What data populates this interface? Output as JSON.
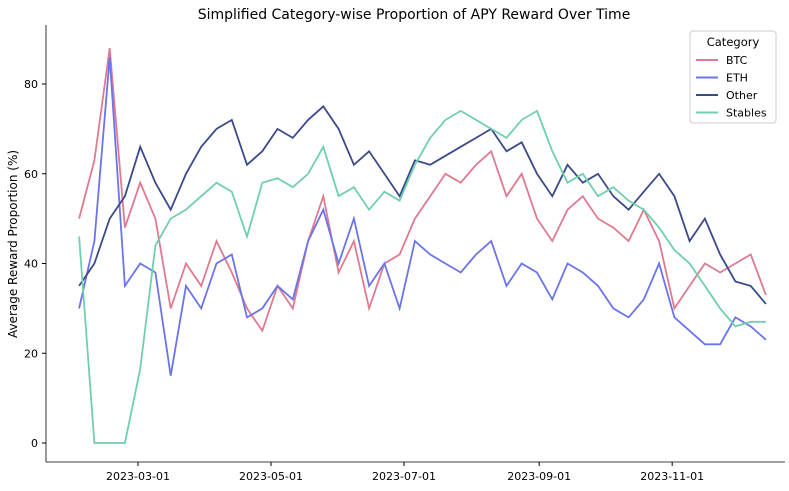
{
  "chart_data": {
    "type": "line",
    "title": "Simplified Category-wise Proportion of APY Reward Over Time",
    "xlabel": "",
    "ylabel": "Average Reward Proportion (%)",
    "ylim": [
      -4.5,
      93
    ],
    "yticks": [
      0,
      20,
      40,
      60,
      80
    ],
    "xticks": [
      "2023-03-01",
      "2023-05-01",
      "2023-07-01",
      "2023-09-01",
      "2023-11-01"
    ],
    "legend": {
      "title": "Category",
      "placement": "top-right"
    },
    "x": [
      "2023-02-02",
      "2023-02-09",
      "2023-02-16",
      "2023-02-23",
      "2023-03-02",
      "2023-03-09",
      "2023-03-16",
      "2023-03-23",
      "2023-03-30",
      "2023-04-06",
      "2023-04-13",
      "2023-04-20",
      "2023-04-27",
      "2023-05-04",
      "2023-05-11",
      "2023-05-18",
      "2023-05-25",
      "2023-06-01",
      "2023-06-08",
      "2023-06-15",
      "2023-06-22",
      "2023-06-29",
      "2023-07-06",
      "2023-07-13",
      "2023-07-20",
      "2023-07-27",
      "2023-08-03",
      "2023-08-10",
      "2023-08-17",
      "2023-08-24",
      "2023-08-31",
      "2023-09-07",
      "2023-09-14",
      "2023-09-21",
      "2023-09-28",
      "2023-10-05",
      "2023-10-12",
      "2023-10-19",
      "2023-10-26",
      "2023-11-02",
      "2023-11-09",
      "2023-11-16",
      "2023-11-23",
      "2023-11-30",
      "2023-12-07",
      "2023-12-14"
    ],
    "series": [
      {
        "name": "BTC",
        "color": "#e07a8f",
        "values": [
          50,
          63,
          88,
          48,
          58,
          50,
          30,
          40,
          35,
          45,
          38,
          30,
          25,
          35,
          30,
          45,
          55,
          38,
          45,
          30,
          40,
          42,
          50,
          55,
          60,
          58,
          62,
          65,
          55,
          60,
          50,
          45,
          52,
          55,
          50,
          48,
          45,
          52,
          45,
          30,
          35,
          40,
          38,
          40,
          42,
          33
        ]
      },
      {
        "name": "ETH",
        "color": "#6b74e8",
        "values": [
          30,
          45,
          86,
          35,
          40,
          38,
          15,
          35,
          30,
          40,
          42,
          28,
          30,
          35,
          32,
          45,
          52,
          40,
          50,
          35,
          40,
          30,
          45,
          42,
          40,
          38,
          42,
          45,
          35,
          40,
          38,
          32,
          40,
          38,
          35,
          30,
          28,
          32,
          40,
          28,
          25,
          22,
          22,
          28,
          26,
          23
        ]
      },
      {
        "name": "Other",
        "color": "#3a4a8a",
        "values": [
          35,
          40,
          50,
          55,
          66,
          58,
          52,
          60,
          66,
          70,
          72,
          62,
          65,
          70,
          68,
          72,
          75,
          70,
          62,
          65,
          60,
          55,
          63,
          62,
          64,
          66,
          68,
          70,
          65,
          67,
          60,
          55,
          62,
          58,
          60,
          55,
          52,
          56,
          60,
          55,
          45,
          50,
          42,
          36,
          35,
          31
        ]
      },
      {
        "name": "Stables",
        "color": "#6fcfae",
        "values": [
          46,
          0,
          0,
          0,
          16.5,
          44,
          50,
          52,
          55,
          58,
          56,
          46,
          58,
          59,
          57,
          60,
          66,
          55,
          57,
          52,
          56,
          54,
          62,
          68,
          72,
          74,
          72,
          70,
          68,
          72,
          74,
          65,
          58,
          60,
          55,
          57,
          54,
          52,
          48,
          43,
          40,
          35,
          30,
          26,
          27,
          27
        ]
      }
    ]
  }
}
